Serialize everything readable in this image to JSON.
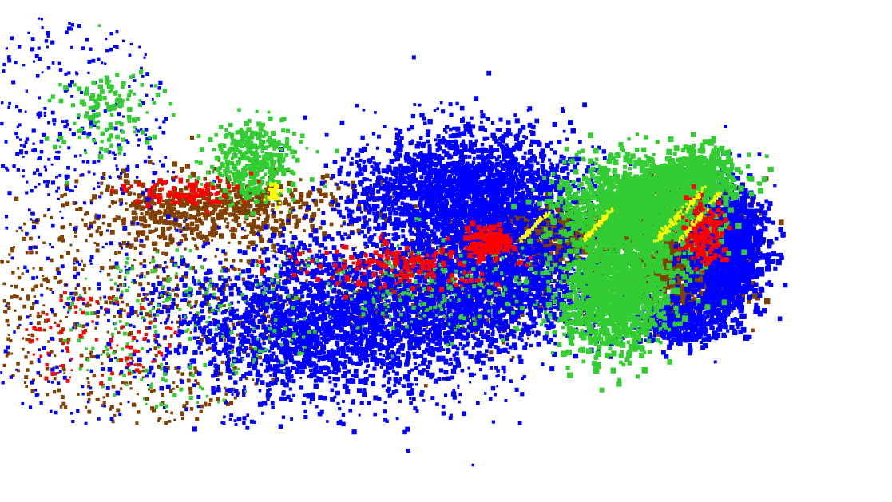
{
  "scene": {
    "kind": "segmented-point-cloud",
    "background": "#ffffff",
    "classes": [
      {
        "id": "class-blue",
        "color": "#0000ff"
      },
      {
        "id": "class-green",
        "color": "#33cc33"
      },
      {
        "id": "class-brown",
        "color": "#804000"
      },
      {
        "id": "class-red",
        "color": "#ff0000"
      },
      {
        "id": "class-yellow",
        "color": "#ffff00"
      }
    ]
  }
}
